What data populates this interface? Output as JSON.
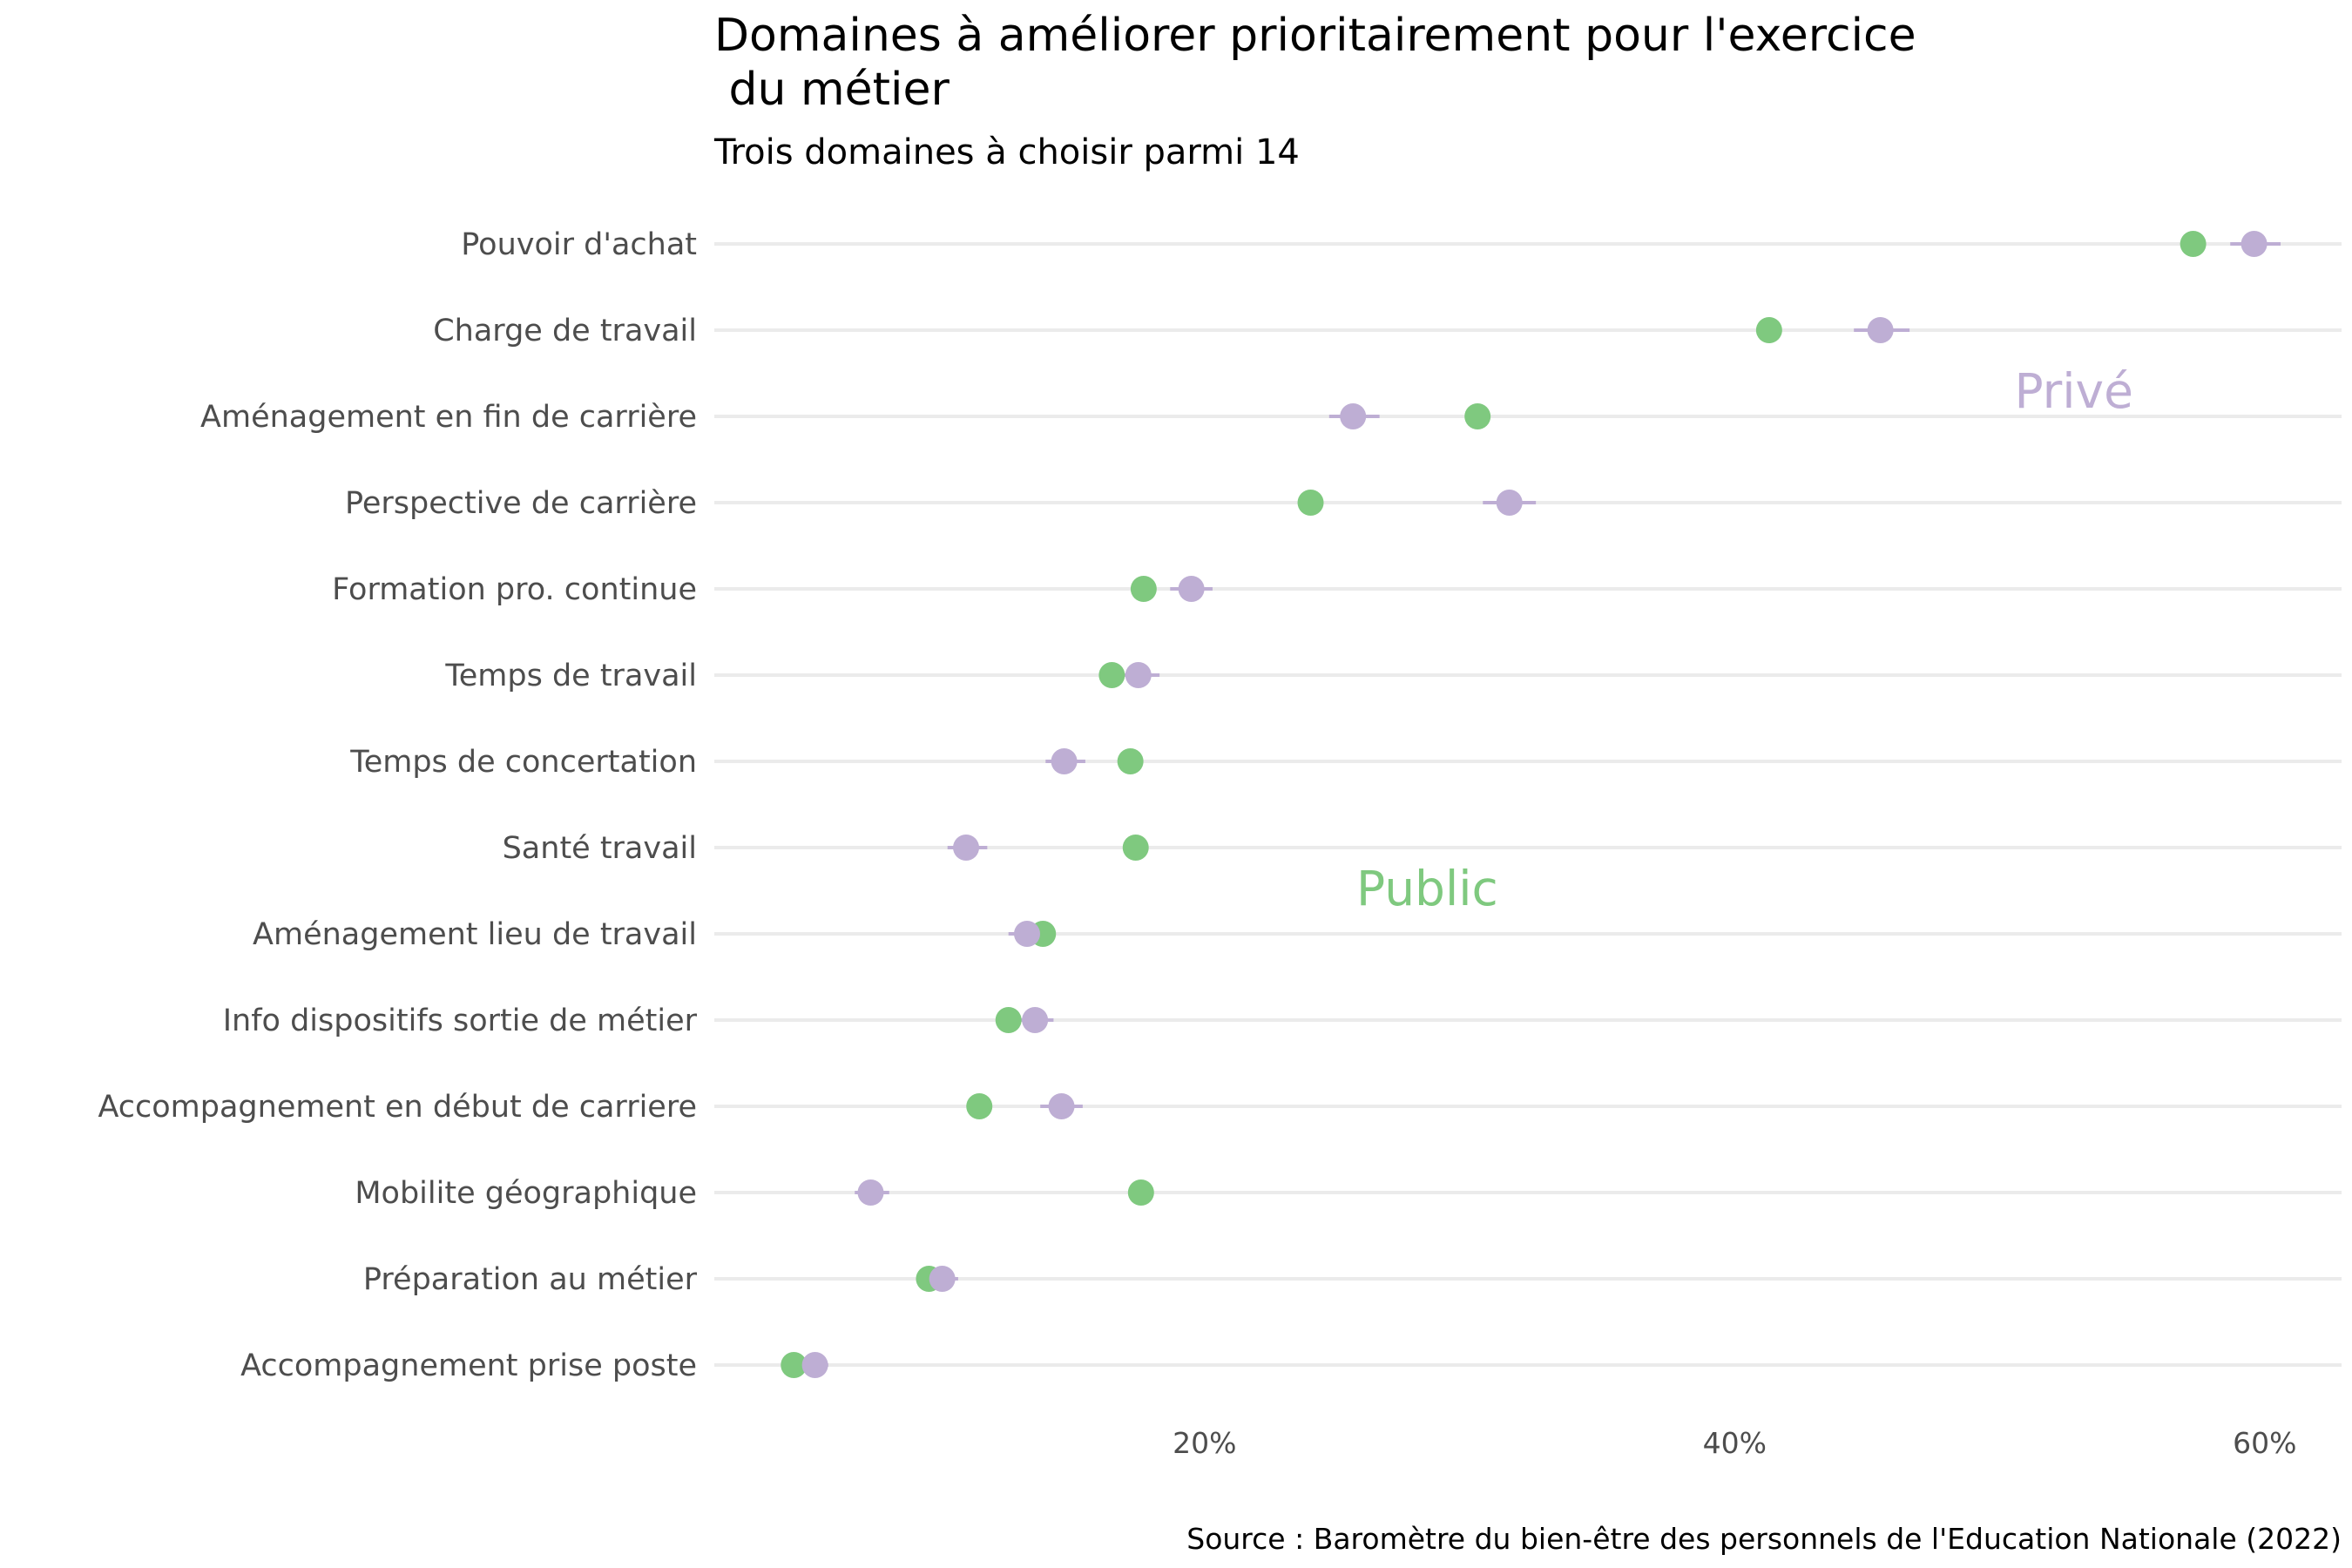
{
  "chart_data": {
    "type": "scatter",
    "title_line1": "Domaines à améliorer prioritairement pour l'exercice",
    "title_line2": " du métier",
    "subtitle": "Trois domaines à choisir parmi 14",
    "caption": "Source : Baromètre du bien-être des personnels de l'Education Nationale (2022)",
    "xlabel": "",
    "ylabel": "",
    "xlim": [
      1.5,
      62.9
    ],
    "x_ticks": [
      {
        "value": 20,
        "label": "20%"
      },
      {
        "value": 40,
        "label": "40%"
      },
      {
        "value": 60,
        "label": "60%"
      }
    ],
    "grid": "horizontal",
    "legend": "none",
    "categories": [
      "Pouvoir d'achat",
      "Charge de travail",
      "Aménagement en fin de carrière",
      "Perspective de carrière",
      "Formation pro. continue",
      "Temps de travail",
      "Temps de concertation",
      "Santé travail",
      "Aménagement lieu de travail",
      "Info dispositifs sortie de métier",
      "Accompagnement en début de carriere",
      "Mobilite géographique",
      "Préparation au métier",
      "Accompagnement prise poste"
    ],
    "series": [
      {
        "name": "Public",
        "color": "#7fc97f",
        "values": [
          57.3,
          41.3,
          30.3,
          24.0,
          17.7,
          16.5,
          17.2,
          17.4,
          13.9,
          12.6,
          11.5,
          17.6,
          9.6,
          4.5
        ]
      },
      {
        "name": "Privé",
        "color": "#beaed4",
        "values": [
          59.6,
          45.5,
          25.6,
          31.5,
          19.5,
          17.5,
          14.7,
          11.0,
          13.3,
          13.6,
          14.6,
          7.4,
          10.1,
          5.3
        ],
        "interval": [
          [
            58.7,
            60.6
          ],
          [
            44.5,
            46.6
          ],
          [
            24.7,
            26.6
          ],
          [
            30.5,
            32.5
          ],
          [
            18.7,
            20.3
          ],
          [
            16.9,
            18.3
          ],
          [
            14.0,
            15.5
          ],
          [
            10.3,
            11.8
          ],
          [
            12.6,
            14.0
          ],
          [
            12.9,
            14.3
          ],
          [
            13.8,
            15.4
          ],
          [
            6.8,
            8.1
          ],
          [
            9.6,
            10.7
          ],
          [
            4.9,
            5.8
          ]
        ]
      }
    ],
    "annotations": [
      {
        "text": "Privé",
        "x": 52.8,
        "y": "Aménagement en fin de carrière",
        "color": "#beaed4"
      },
      {
        "text": "Public",
        "x": 28.4,
        "y": "Aménagement lieu de travail",
        "color": "#7fc97f"
      }
    ]
  }
}
